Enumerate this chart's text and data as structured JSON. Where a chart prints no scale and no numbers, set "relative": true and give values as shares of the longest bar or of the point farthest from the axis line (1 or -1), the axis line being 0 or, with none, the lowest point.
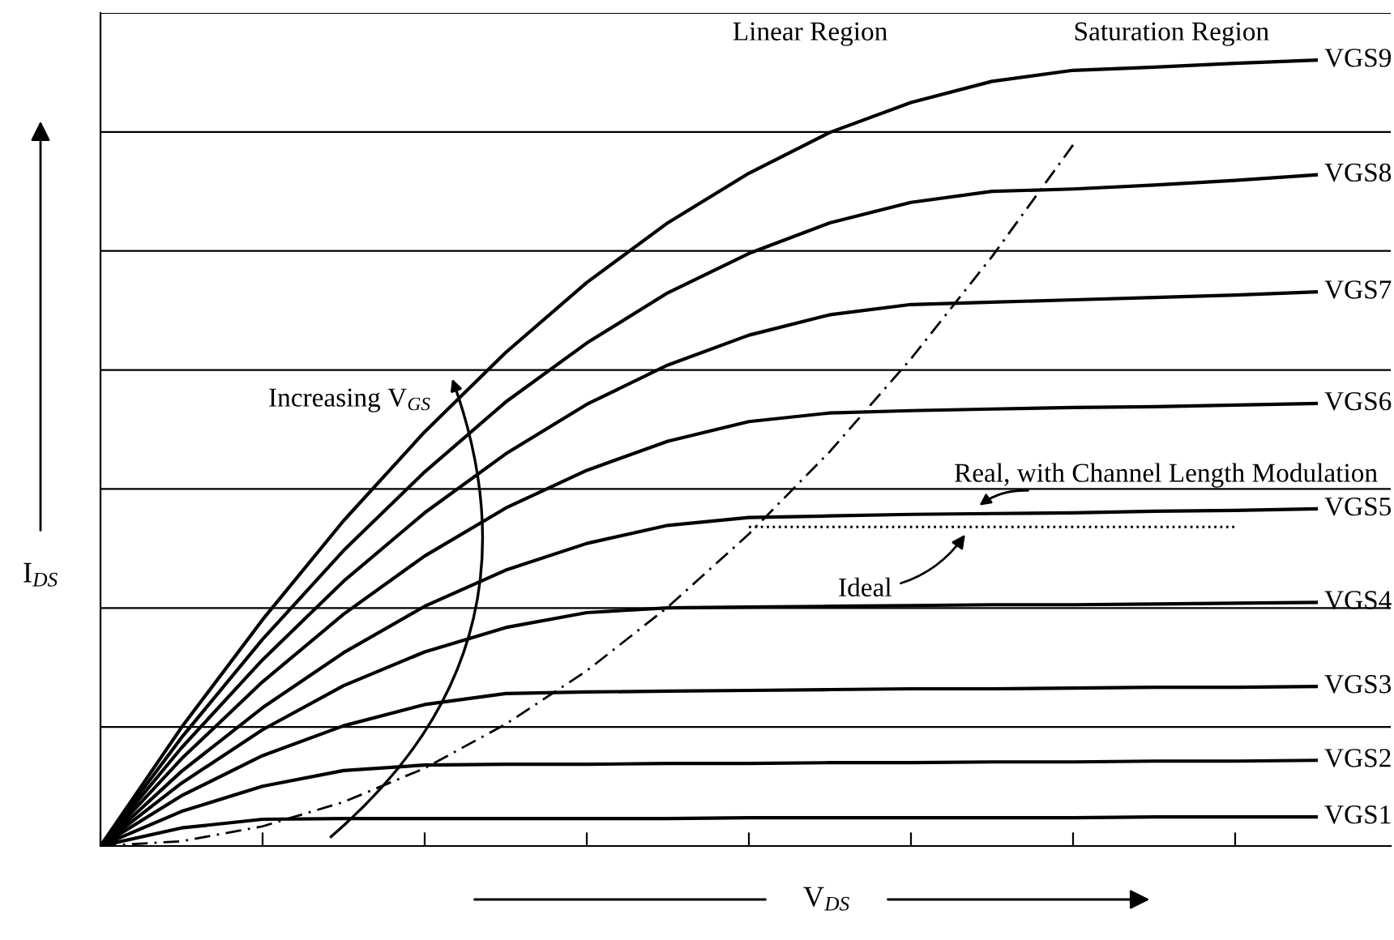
{
  "chart_data": {
    "type": "line",
    "relative": true,
    "xlabel": "V$_{DS}$",
    "ylabel": "I$_{DS}$",
    "categories": [
      null,
      null,
      null,
      null,
      null,
      null,
      null,
      null,
      null,
      null,
      null,
      null,
      null,
      null,
      null,
      null
    ],
    "series": [
      {
        "name": "VGS1",
        "color": "#000000",
        "values": [
          0,
          0.023,
          0.034,
          0.035,
          0.035,
          0.035,
          0.035,
          0.035,
          0.036,
          0.036,
          0.036,
          0.036,
          0.036,
          0.037,
          0.037,
          0.037
        ]
      },
      {
        "name": "VGS2",
        "color": "#000000",
        "values": [
          0,
          0.044,
          0.076,
          0.096,
          0.103,
          0.104,
          0.104,
          0.105,
          0.105,
          0.106,
          0.106,
          0.107,
          0.107,
          0.108,
          0.108,
          0.109
        ]
      },
      {
        "name": "VGS3",
        "color": "#000000",
        "values": [
          0,
          0.064,
          0.115,
          0.153,
          0.18,
          0.194,
          0.196,
          0.197,
          0.198,
          0.199,
          0.2,
          0.2,
          0.201,
          0.202,
          0.202,
          0.203
        ]
      },
      {
        "name": "VGS4",
        "color": "#000000",
        "values": [
          0,
          0.08,
          0.148,
          0.204,
          0.247,
          0.278,
          0.297,
          0.303,
          0.304,
          0.305,
          0.306,
          0.307,
          0.307,
          0.308,
          0.309,
          0.31
        ]
      },
      {
        "name": "VGS5",
        "color": "#000000",
        "values": [
          0,
          0.095,
          0.176,
          0.246,
          0.305,
          0.351,
          0.385,
          0.408,
          0.418,
          0.42,
          0.422,
          0.423,
          0.424,
          0.426,
          0.427,
          0.429
        ]
      },
      {
        "name": "VGS6",
        "color": "#000000",
        "values": [
          0,
          0.111,
          0.209,
          0.295,
          0.369,
          0.43,
          0.478,
          0.515,
          0.54,
          0.551,
          0.554,
          0.556,
          0.558,
          0.559,
          0.561,
          0.563
        ]
      },
      {
        "name": "VGS7",
        "color": "#000000",
        "values": [
          0,
          0.125,
          0.237,
          0.337,
          0.424,
          0.499,
          0.562,
          0.612,
          0.65,
          0.676,
          0.689,
          0.692,
          0.695,
          0.698,
          0.701,
          0.705
        ]
      },
      {
        "name": "VGS8",
        "color": "#000000",
        "values": [
          0,
          0.138,
          0.263,
          0.376,
          0.476,
          0.565,
          0.64,
          0.704,
          0.754,
          0.793,
          0.819,
          0.833,
          0.836,
          0.841,
          0.847,
          0.854
        ]
      },
      {
        "name": "VGS9",
        "color": "#000000",
        "values": [
          0,
          0.151,
          0.288,
          0.414,
          0.527,
          0.628,
          0.717,
          0.793,
          0.856,
          0.908,
          0.946,
          0.973,
          0.987,
          0.991,
          0.996,
          1
        ]
      },
      {
        "name": "Ideal",
        "color": "#000000",
        "line_style": "dotted",
        "values": [
          null,
          null,
          null,
          null,
          null,
          null,
          null,
          null,
          0.406,
          0.406,
          0.406,
          0.406,
          0.406,
          0.406,
          0.406,
          null
        ]
      },
      {
        "color": "#000000",
        "line_style": "dashed",
        "values": [
          0,
          0.006,
          0.025,
          0.056,
          0.099,
          0.155,
          0.223,
          0.304,
          0.397,
          0.502,
          0.62,
          0.75,
          0.892,
          null,
          null,
          null
        ]
      }
    ],
    "annotations": [
      "Linear Region",
      "Saturation Region",
      "Increasing V$_{GS}$",
      "Real, with Channel Length Modulation"
    ],
    "grid": "y",
    "tick_labels": false,
    "line_style": "solid",
    "marker": "none"
  }
}
